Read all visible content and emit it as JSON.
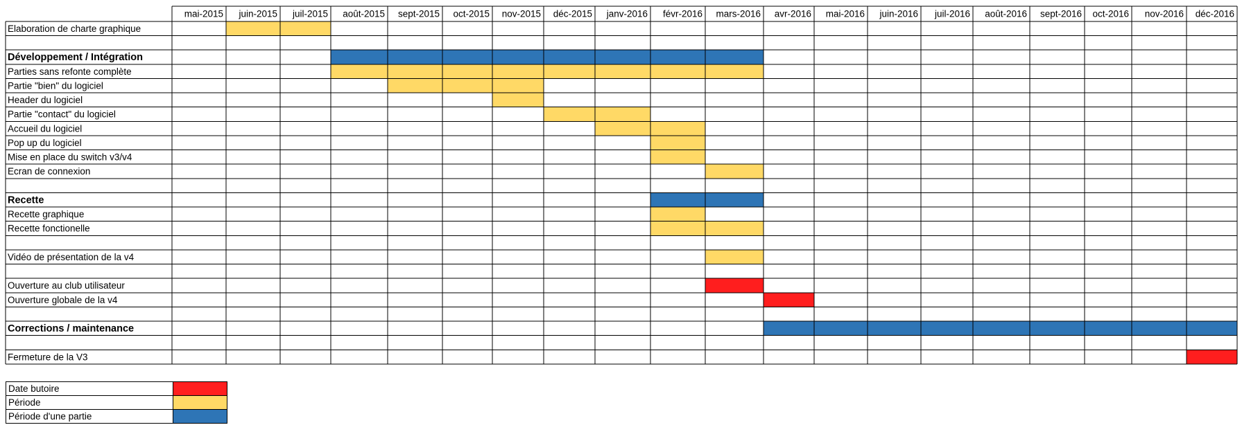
{
  "chart_data": {
    "type": "gantt",
    "months": [
      "mai-2015",
      "juin-2015",
      "juil-2015",
      "août-2015",
      "sept-2015",
      "oct-2015",
      "nov-2015",
      "déc-2015",
      "janv-2016",
      "févr-2016",
      "mars-2016",
      "avr-2016",
      "mai-2016",
      "juin-2016",
      "juil-2016",
      "août-2016",
      "sept-2016",
      "oct-2016",
      "nov-2016",
      "déc-2016"
    ],
    "rows": [
      {
        "label": "Elaboration de charte graphique",
        "bold": false,
        "start": "juin-2015",
        "end": "juil-2015",
        "kind": "periode"
      },
      {
        "label": "",
        "bold": false
      },
      {
        "label": "Développement / Intégration",
        "bold": true,
        "start": "août-2015",
        "end": "mars-2016",
        "kind": "partie"
      },
      {
        "label": "Parties sans refonte complète",
        "bold": false,
        "start": "août-2015",
        "end": "mars-2016",
        "kind": "periode"
      },
      {
        "label": "Partie \"bien\" du logiciel",
        "bold": false,
        "start": "sept-2015",
        "end": "nov-2015",
        "kind": "periode"
      },
      {
        "label": "Header du logiciel",
        "bold": false,
        "start": "nov-2015",
        "end": "nov-2015",
        "kind": "periode"
      },
      {
        "label": "Partie \"contact\" du logiciel",
        "bold": false,
        "start": "déc-2015",
        "end": "janv-2016",
        "kind": "periode"
      },
      {
        "label": "Accueil du logiciel",
        "bold": false,
        "start": "janv-2016",
        "end": "févr-2016",
        "kind": "periode"
      },
      {
        "label": "Pop up du logiciel",
        "bold": false,
        "start": "févr-2016",
        "end": "févr-2016",
        "kind": "periode"
      },
      {
        "label": "Mise en place du switch v3/v4",
        "bold": false,
        "start": "févr-2016",
        "end": "févr-2016",
        "kind": "periode"
      },
      {
        "label": "Ecran de connexion",
        "bold": false,
        "start": "mars-2016",
        "end": "mars-2016",
        "kind": "periode"
      },
      {
        "label": "",
        "bold": false
      },
      {
        "label": "Recette",
        "bold": true,
        "start": "févr-2016",
        "end": "mars-2016",
        "kind": "partie"
      },
      {
        "label": "Recette graphique",
        "bold": false,
        "start": "févr-2016",
        "end": "févr-2016",
        "kind": "periode"
      },
      {
        "label": "Recette fonctionelle",
        "bold": false,
        "start": "févr-2016",
        "end": "mars-2016",
        "kind": "periode"
      },
      {
        "label": "",
        "bold": false
      },
      {
        "label": "Vidéo de présentation de la v4",
        "bold": false,
        "start": "mars-2016",
        "end": "mars-2016",
        "kind": "periode"
      },
      {
        "label": "",
        "bold": false
      },
      {
        "label": "Ouverture au club utilisateur",
        "bold": false,
        "start": "mars-2016",
        "end": "mars-2016",
        "kind": "butoire"
      },
      {
        "label": "Ouverture globale de la v4",
        "bold": false,
        "start": "avr-2016",
        "end": "avr-2016",
        "kind": "butoire"
      },
      {
        "label": "",
        "bold": false
      },
      {
        "label": "Corrections / maintenance",
        "bold": true,
        "start": "avr-2016",
        "end": "déc-2016",
        "kind": "partie"
      },
      {
        "label": "",
        "bold": false
      },
      {
        "label": "Fermeture de la V3",
        "bold": false,
        "start": "déc-2016",
        "end": "déc-2016",
        "kind": "butoire"
      }
    ],
    "legend": [
      {
        "label": "Date butoire",
        "kind": "butoire"
      },
      {
        "label": "Période",
        "kind": "periode"
      },
      {
        "label": "Période d'une partie",
        "kind": "partie"
      }
    ],
    "colors": {
      "butoire": "#ff1e1e",
      "periode": "#ffd966",
      "partie": "#2e75b6"
    }
  }
}
